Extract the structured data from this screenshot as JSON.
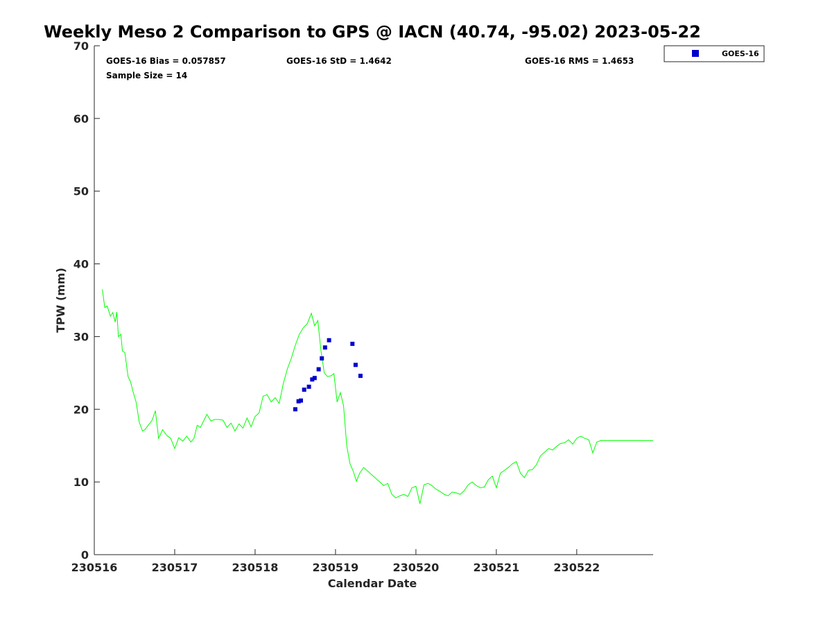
{
  "chart_data": {
    "type": "scatter",
    "title": "Weekly Meso 2 Comparison to GPS @ IACN (40.74, -95.02) 2023-05-22",
    "xlabel": "Calendar Date",
    "ylabel": "TPW (mm)",
    "xlim": [
      230516,
      230522.95
    ],
    "ylim": [
      0,
      70
    ],
    "x_ticks": [
      230516,
      230517,
      230518,
      230519,
      230520,
      230521,
      230522
    ],
    "x_tick_labels": [
      "230516",
      "230517",
      "230518",
      "230519",
      "230520",
      "230521",
      "230522"
    ],
    "y_ticks": [
      0,
      10,
      20,
      30,
      40,
      50,
      60,
      70
    ],
    "y_tick_labels": [
      "0",
      "10",
      "20",
      "30",
      "40",
      "50",
      "60",
      "70"
    ],
    "grid": false,
    "stats": {
      "bias": "GOES-16 Bias = 0.057857",
      "std": "GOES-16 StD = 1.4642",
      "rms": "GOES-16 RMS = 1.4653",
      "sample_size": "Sample Size = 14"
    },
    "legend": {
      "placement": "top-right",
      "entries": [
        "GOES-16"
      ]
    },
    "colors": {
      "gps_line": "#00ff00",
      "goes16": "#0000cc"
    },
    "series": [
      {
        "name": "GPS",
        "kind": "line",
        "x": [
          230516.1,
          230516.13,
          230516.16,
          230516.2,
          230516.23,
          230516.26,
          230516.28,
          230516.3,
          230516.33,
          230516.35,
          230516.38,
          230516.42,
          230516.45,
          230516.48,
          230516.52,
          230516.56,
          230516.6,
          230516.63,
          230516.67,
          230516.72,
          230516.76,
          230516.8,
          230516.85,
          230516.9,
          230516.95,
          230517.0,
          230517.05,
          230517.1,
          230517.15,
          230517.2,
          230517.24,
          230517.28,
          230517.32,
          230517.36,
          230517.4,
          230517.45,
          230517.5,
          230517.55,
          230517.6,
          230517.65,
          230517.7,
          230517.75,
          230517.8,
          230517.85,
          230517.9,
          230517.95,
          230518.0,
          230518.05,
          230518.1,
          230518.15,
          230518.2,
          230518.25,
          230518.3,
          230518.35,
          230518.4,
          230518.45,
          230518.5,
          230518.55,
          230518.6,
          230518.65,
          230518.7,
          230518.74,
          230518.78,
          230518.82,
          230518.86,
          230518.9,
          230518.94,
          230518.98,
          230519.02,
          230519.06,
          230519.1,
          230519.14,
          230519.18,
          230519.22,
          230519.26,
          230519.3,
          230519.35,
          230519.4,
          230519.45,
          230519.5,
          230519.55,
          230519.6,
          230519.65,
          230519.7,
          230519.75,
          230519.8,
          230519.85,
          230519.9,
          230519.95,
          230520.0,
          230520.05,
          230520.1,
          230520.15,
          230520.2,
          230520.25,
          230520.3,
          230520.35,
          230520.4,
          230520.45,
          230520.5,
          230520.55,
          230520.6,
          230520.65,
          230520.7,
          230520.75,
          230520.8,
          230520.85,
          230520.9,
          230520.95,
          230521.0,
          230521.05,
          230521.1,
          230521.15,
          230521.2,
          230521.25,
          230521.3,
          230521.35,
          230521.4,
          230521.45,
          230521.5,
          230521.55,
          230521.6,
          230521.65,
          230521.7,
          230521.75,
          230521.8,
          230521.85,
          230521.9,
          230521.95,
          230522.0,
          230522.05,
          230522.1,
          230522.15,
          230522.2,
          230522.25,
          230522.3,
          230522.35,
          230522.4,
          230522.45,
          230522.5,
          230522.55,
          230522.6,
          230522.65,
          230522.7,
          230522.75,
          230522.8,
          230522.85,
          230522.9,
          230522.95
        ],
        "values": [
          36.5,
          34.0,
          34.2,
          32.8,
          33.3,
          32.0,
          33.4,
          30.0,
          30.3,
          28.0,
          27.8,
          24.5,
          23.8,
          22.5,
          21.0,
          18.2,
          17.0,
          17.2,
          17.8,
          18.5,
          19.8,
          16.0,
          17.2,
          16.4,
          16.0,
          14.6,
          16.1,
          15.6,
          16.3,
          15.5,
          16.0,
          17.8,
          17.5,
          18.4,
          19.3,
          18.4,
          18.6,
          18.6,
          18.5,
          17.5,
          18.1,
          17.0,
          18.0,
          17.4,
          18.8,
          17.6,
          19.0,
          19.5,
          21.8,
          22.0,
          21.0,
          21.6,
          20.8,
          23.5,
          25.5,
          27.0,
          28.8,
          30.3,
          31.2,
          31.8,
          33.2,
          31.5,
          32.2,
          28.0,
          25.0,
          24.5,
          24.6,
          24.9,
          21.0,
          22.3,
          20.5,
          15.0,
          12.5,
          11.5,
          10.1,
          11.2,
          12.0,
          11.5,
          11.0,
          10.5,
          10.0,
          9.5,
          9.8,
          8.3,
          7.8,
          8.1,
          8.3,
          8.0,
          9.2,
          9.4,
          7.0,
          9.6,
          9.8,
          9.5,
          9.0,
          8.7,
          8.3,
          8.1,
          8.6,
          8.5,
          8.3,
          8.8,
          9.6,
          10.0,
          9.5,
          9.2,
          9.3,
          10.3,
          10.8,
          9.2,
          11.2,
          11.6,
          12.0,
          12.5,
          12.8,
          11.2,
          10.6,
          11.6,
          11.7,
          12.4,
          13.6,
          14.1,
          14.6,
          14.4,
          14.9,
          15.3,
          15.4,
          15.8,
          15.2,
          16.0,
          16.3,
          16.0,
          15.8,
          14.0,
          15.5,
          15.7,
          15.7,
          15.7,
          15.7,
          15.7,
          15.7,
          15.7,
          15.7,
          15.7,
          15.7,
          15.7,
          15.7,
          15.7,
          15.7
        ]
      },
      {
        "name": "GOES-16",
        "kind": "scatter",
        "x": [
          230518.5,
          230518.54,
          230518.57,
          230518.61,
          230518.67,
          230518.71,
          230518.74,
          230518.79,
          230518.83,
          230518.87,
          230518.92,
          230519.21,
          230519.25,
          230519.31
        ],
        "values": [
          20.0,
          21.1,
          21.2,
          22.7,
          23.1,
          24.1,
          24.3,
          25.5,
          27.0,
          28.5,
          29.5,
          29.0,
          26.1,
          24.6
        ]
      }
    ]
  }
}
